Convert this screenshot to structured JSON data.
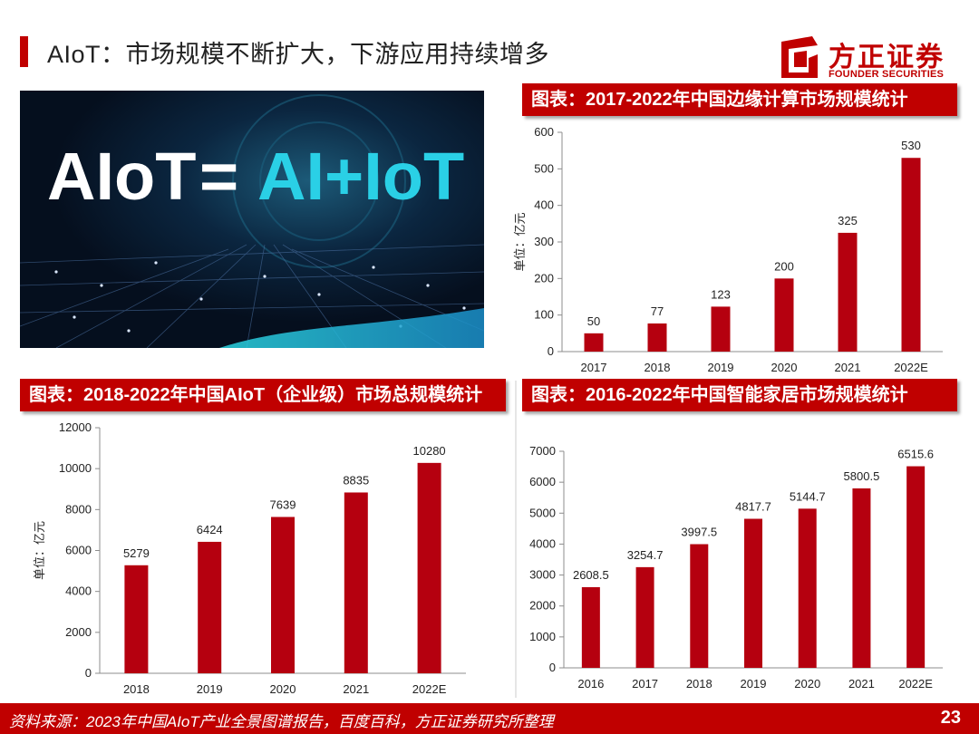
{
  "header": {
    "title": "AIoT：市场规模不断扩大，下游应用持续增多"
  },
  "logo": {
    "cn": "方正证券",
    "en": "FOUNDER SECURITIES",
    "color": "#c00000"
  },
  "hero": {
    "text_left": "AIoT",
    "text_eq": "=",
    "text_right": "AI+IoT"
  },
  "colors": {
    "accent": "#c00000",
    "bar": "#b5000f"
  },
  "chart_data": [
    {
      "type": "bar",
      "title": "图表：2017-2022年中国边缘计算市场规模统计",
      "categories": [
        "2017",
        "2018",
        "2019",
        "2020",
        "2021",
        "2022E"
      ],
      "values": [
        50,
        77,
        123,
        200,
        325,
        530
      ],
      "value_labels": [
        "50",
        "77",
        "123",
        "200",
        "325",
        "530"
      ],
      "ylabel": "单位：亿元",
      "ylim": [
        0,
        600
      ],
      "yticks": [
        0,
        100,
        200,
        300,
        400,
        500,
        600
      ],
      "grid": false
    },
    {
      "type": "bar",
      "title": "图表：2018-2022年中国AIoT（企业级）市场总规模统计",
      "categories": [
        "2018",
        "2019",
        "2020",
        "2021",
        "2022E"
      ],
      "values": [
        5279,
        6424,
        7639,
        8835,
        10280
      ],
      "value_labels": [
        "5279",
        "6424",
        "7639",
        "8835",
        "10280"
      ],
      "ylabel": "单位：亿元",
      "ylim": [
        0,
        12000
      ],
      "yticks": [
        0,
        2000,
        4000,
        6000,
        8000,
        10000,
        12000
      ],
      "grid": false
    },
    {
      "type": "bar",
      "title": "图表：2016-2022年中国智能家居市场规模统计",
      "categories": [
        "2016",
        "2017",
        "2018",
        "2019",
        "2020",
        "2021",
        "2022E"
      ],
      "values": [
        2608.5,
        3254.7,
        3997.5,
        4817.7,
        5144.7,
        5800.5,
        6515.6
      ],
      "value_labels": [
        "2608.5",
        "3254.7",
        "3997.5",
        "4817.7",
        "5144.7",
        "5800.5",
        "6515.6"
      ],
      "ylabel": "",
      "ylim": [
        0,
        7000
      ],
      "yticks": [
        0,
        1000,
        2000,
        3000,
        4000,
        5000,
        6000,
        7000
      ],
      "grid": false
    }
  ],
  "footer": {
    "source": "资料来源：2023年中国AIoT产业全景图谱报告，百度百科，方正证券研究所整理",
    "page": "23"
  }
}
